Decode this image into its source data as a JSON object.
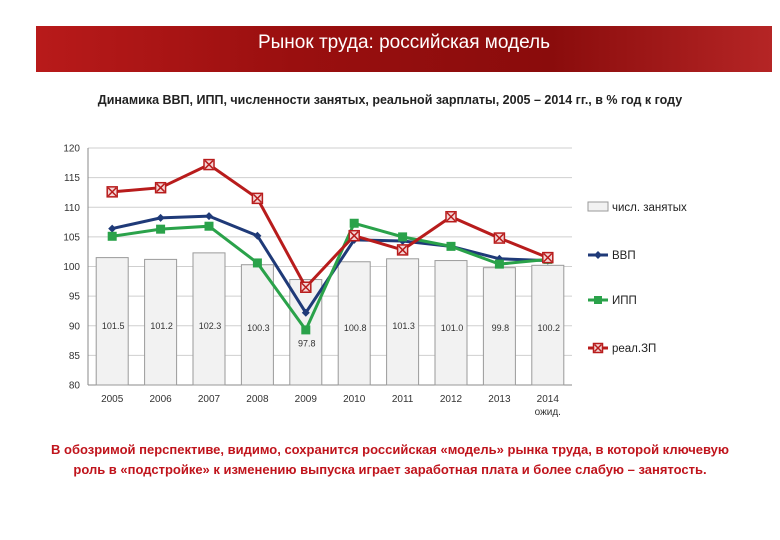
{
  "header": {
    "title": "Рынок труда: российская модель"
  },
  "colors": {
    "banner": "#9a0f0f",
    "bars": "#f2f2f2",
    "vvp": "#1f3a78",
    "ipp": "#2aa24a",
    "zp": "#b81c1c"
  },
  "chart_data": {
    "type": "bar",
    "title": "Динамика ВВП, ИПП, численности занятых, реальной зарплаты, 2005 – 2014 гг., в % год к году",
    "categories": [
      "2005",
      "2006",
      "2007",
      "2008",
      "2009",
      "2010",
      "2011",
      "2012",
      "2013",
      "2014"
    ],
    "category_sublabels": [
      "",
      "",
      "",
      "",
      "",
      "",
      "",
      "",
      "",
      "ожид."
    ],
    "ylim": [
      80,
      120
    ],
    "yticks": [
      80,
      85,
      90,
      95,
      100,
      105,
      110,
      115,
      120
    ],
    "grid": true,
    "legend_position": "right",
    "bar_series": {
      "name": "числ. занятых",
      "values": [
        101.5,
        101.2,
        102.3,
        100.3,
        97.8,
        100.8,
        101.3,
        101.0,
        99.8,
        100.2
      ],
      "labels": [
        "101.5",
        "101.2",
        "102.3",
        "100.3",
        "97.8",
        "100.8",
        "101.3",
        "101.0",
        "99.8",
        "100.2"
      ]
    },
    "line_series": [
      {
        "name": "ВВП",
        "values": [
          106.4,
          108.2,
          108.5,
          105.2,
          92.2,
          104.5,
          104.3,
          103.4,
          101.3,
          101.0
        ]
      },
      {
        "name": "ИПП",
        "values": [
          105.1,
          106.3,
          106.8,
          100.6,
          89.3,
          107.3,
          105.0,
          103.4,
          100.4,
          101.2
        ]
      },
      {
        "name": "реал.ЗП",
        "values": [
          112.6,
          113.3,
          117.2,
          111.5,
          96.5,
          105.2,
          102.8,
          108.4,
          104.8,
          101.5
        ]
      }
    ]
  },
  "footer": {
    "text": "В обозримой перспективе, видимо, сохранится российская «модель» рынка труда, в которой ключевую роль в «подстройке» к изменению выпуска играет заработная плата и более слабую – занятость."
  }
}
